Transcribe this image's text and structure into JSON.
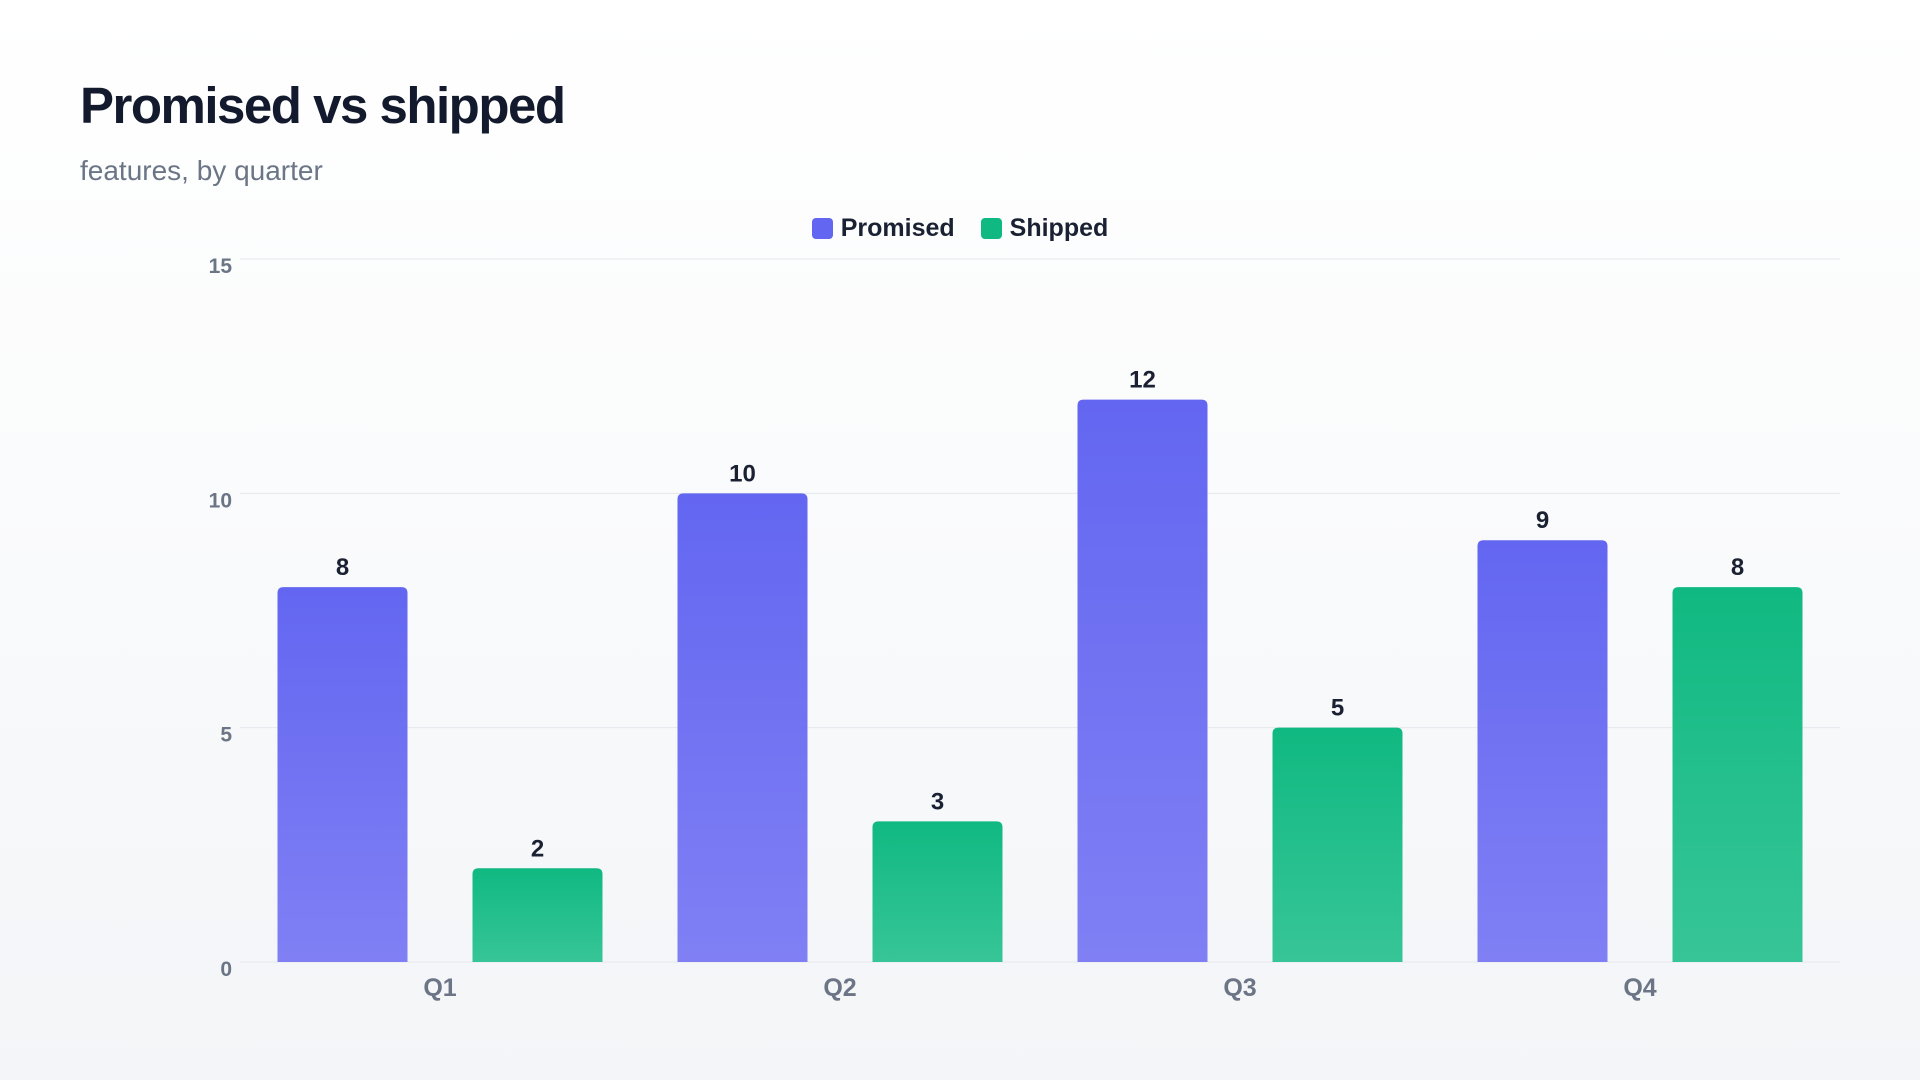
{
  "chart_data": {
    "type": "bar",
    "title": "Promised vs shipped",
    "subtitle": "features, by quarter",
    "xlabel": "",
    "ylabel": "",
    "categories": [
      "Q1",
      "Q2",
      "Q3",
      "Q4"
    ],
    "series": [
      {
        "name": "Promised",
        "values": [
          8,
          10,
          12,
          9
        ],
        "color": "#6366f1"
      },
      {
        "name": "Shipped",
        "values": [
          2,
          3,
          5,
          8
        ],
        "color": "#10b981"
      }
    ],
    "ylim": [
      0,
      15
    ],
    "yticks": [
      0,
      5,
      10,
      15
    ],
    "grid": true,
    "legend_position": "top-center",
    "data_labels": true
  }
}
